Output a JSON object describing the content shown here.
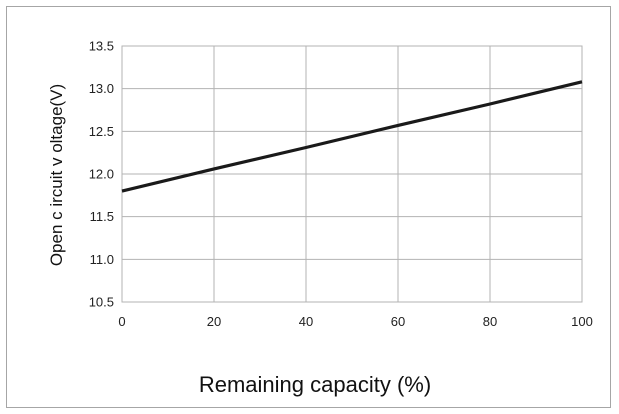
{
  "chart_data": {
    "type": "line",
    "title": "",
    "xlabel": "Remaining capacity (%)",
    "ylabel": "Open c ircuit v oltage(V)",
    "xlim": [
      0,
      100
    ],
    "ylim": [
      10.5,
      13.5
    ],
    "x_ticks": [
      "0",
      "20",
      "40",
      "60",
      "80",
      "100"
    ],
    "y_ticks": [
      "13.5",
      "13.0",
      "12.5",
      "12.0",
      "11.5",
      "11.0",
      "10.5"
    ],
    "grid": true,
    "series": [
      {
        "x": [
          0,
          20,
          40,
          60,
          80,
          100
        ],
        "y": [
          11.8,
          12.06,
          12.31,
          12.57,
          12.82,
          13.08
        ]
      }
    ],
    "colors": {
      "line": "#1a1a1a",
      "grid": "#b3b3b3",
      "frame": "#a6a6a6"
    }
  }
}
